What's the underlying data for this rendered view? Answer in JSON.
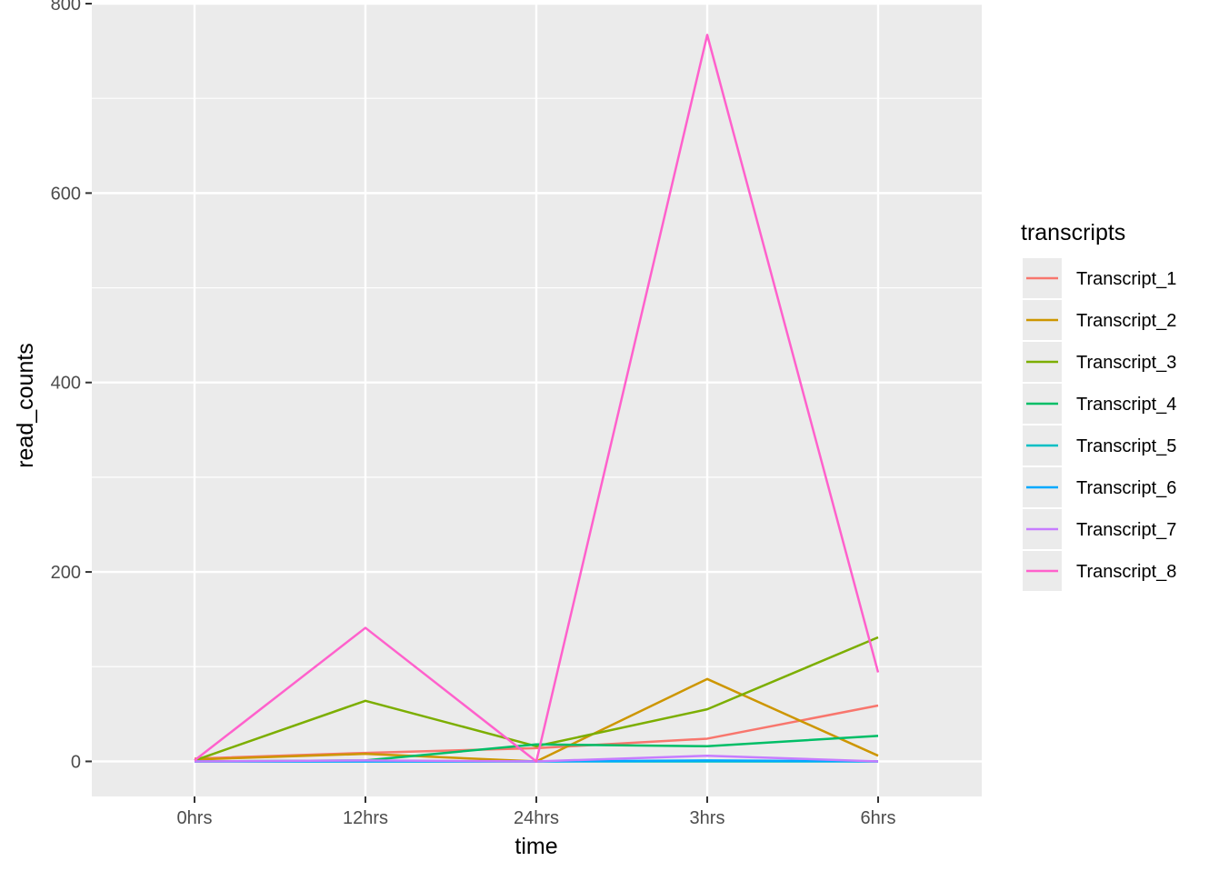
{
  "chart_data": {
    "type": "line",
    "xlabel": "time",
    "ylabel": "read_counts",
    "categories": [
      "0hrs",
      "12hrs",
      "24hrs",
      "3hrs",
      "6hrs"
    ],
    "ylim": [
      -37,
      800
    ],
    "yticks": [
      0,
      200,
      400,
      600,
      800
    ],
    "grid": true,
    "legend": {
      "title": "transcripts",
      "position": "right"
    },
    "series": [
      {
        "name": "Transcript_1",
        "color": "#F8766D",
        "values": [
          3,
          9,
          14,
          24,
          59
        ]
      },
      {
        "name": "Transcript_2",
        "color": "#CD9600",
        "values": [
          2,
          8,
          0,
          87,
          6
        ]
      },
      {
        "name": "Transcript_3",
        "color": "#7CAE00",
        "values": [
          1,
          64,
          16,
          55,
          131
        ]
      },
      {
        "name": "Transcript_4",
        "color": "#00BE67",
        "values": [
          0,
          1,
          18,
          16,
          27
        ]
      },
      {
        "name": "Transcript_5",
        "color": "#00BFC4",
        "values": [
          0,
          0,
          0,
          0,
          0
        ]
      },
      {
        "name": "Transcript_6",
        "color": "#00A9FF",
        "values": [
          0,
          0,
          0,
          1,
          0
        ]
      },
      {
        "name": "Transcript_7",
        "color": "#C77CFF",
        "values": [
          0,
          1,
          0,
          6,
          0
        ]
      },
      {
        "name": "Transcript_8",
        "color": "#FF61CC",
        "values": [
          1,
          141,
          0,
          767,
          94
        ]
      }
    ]
  }
}
